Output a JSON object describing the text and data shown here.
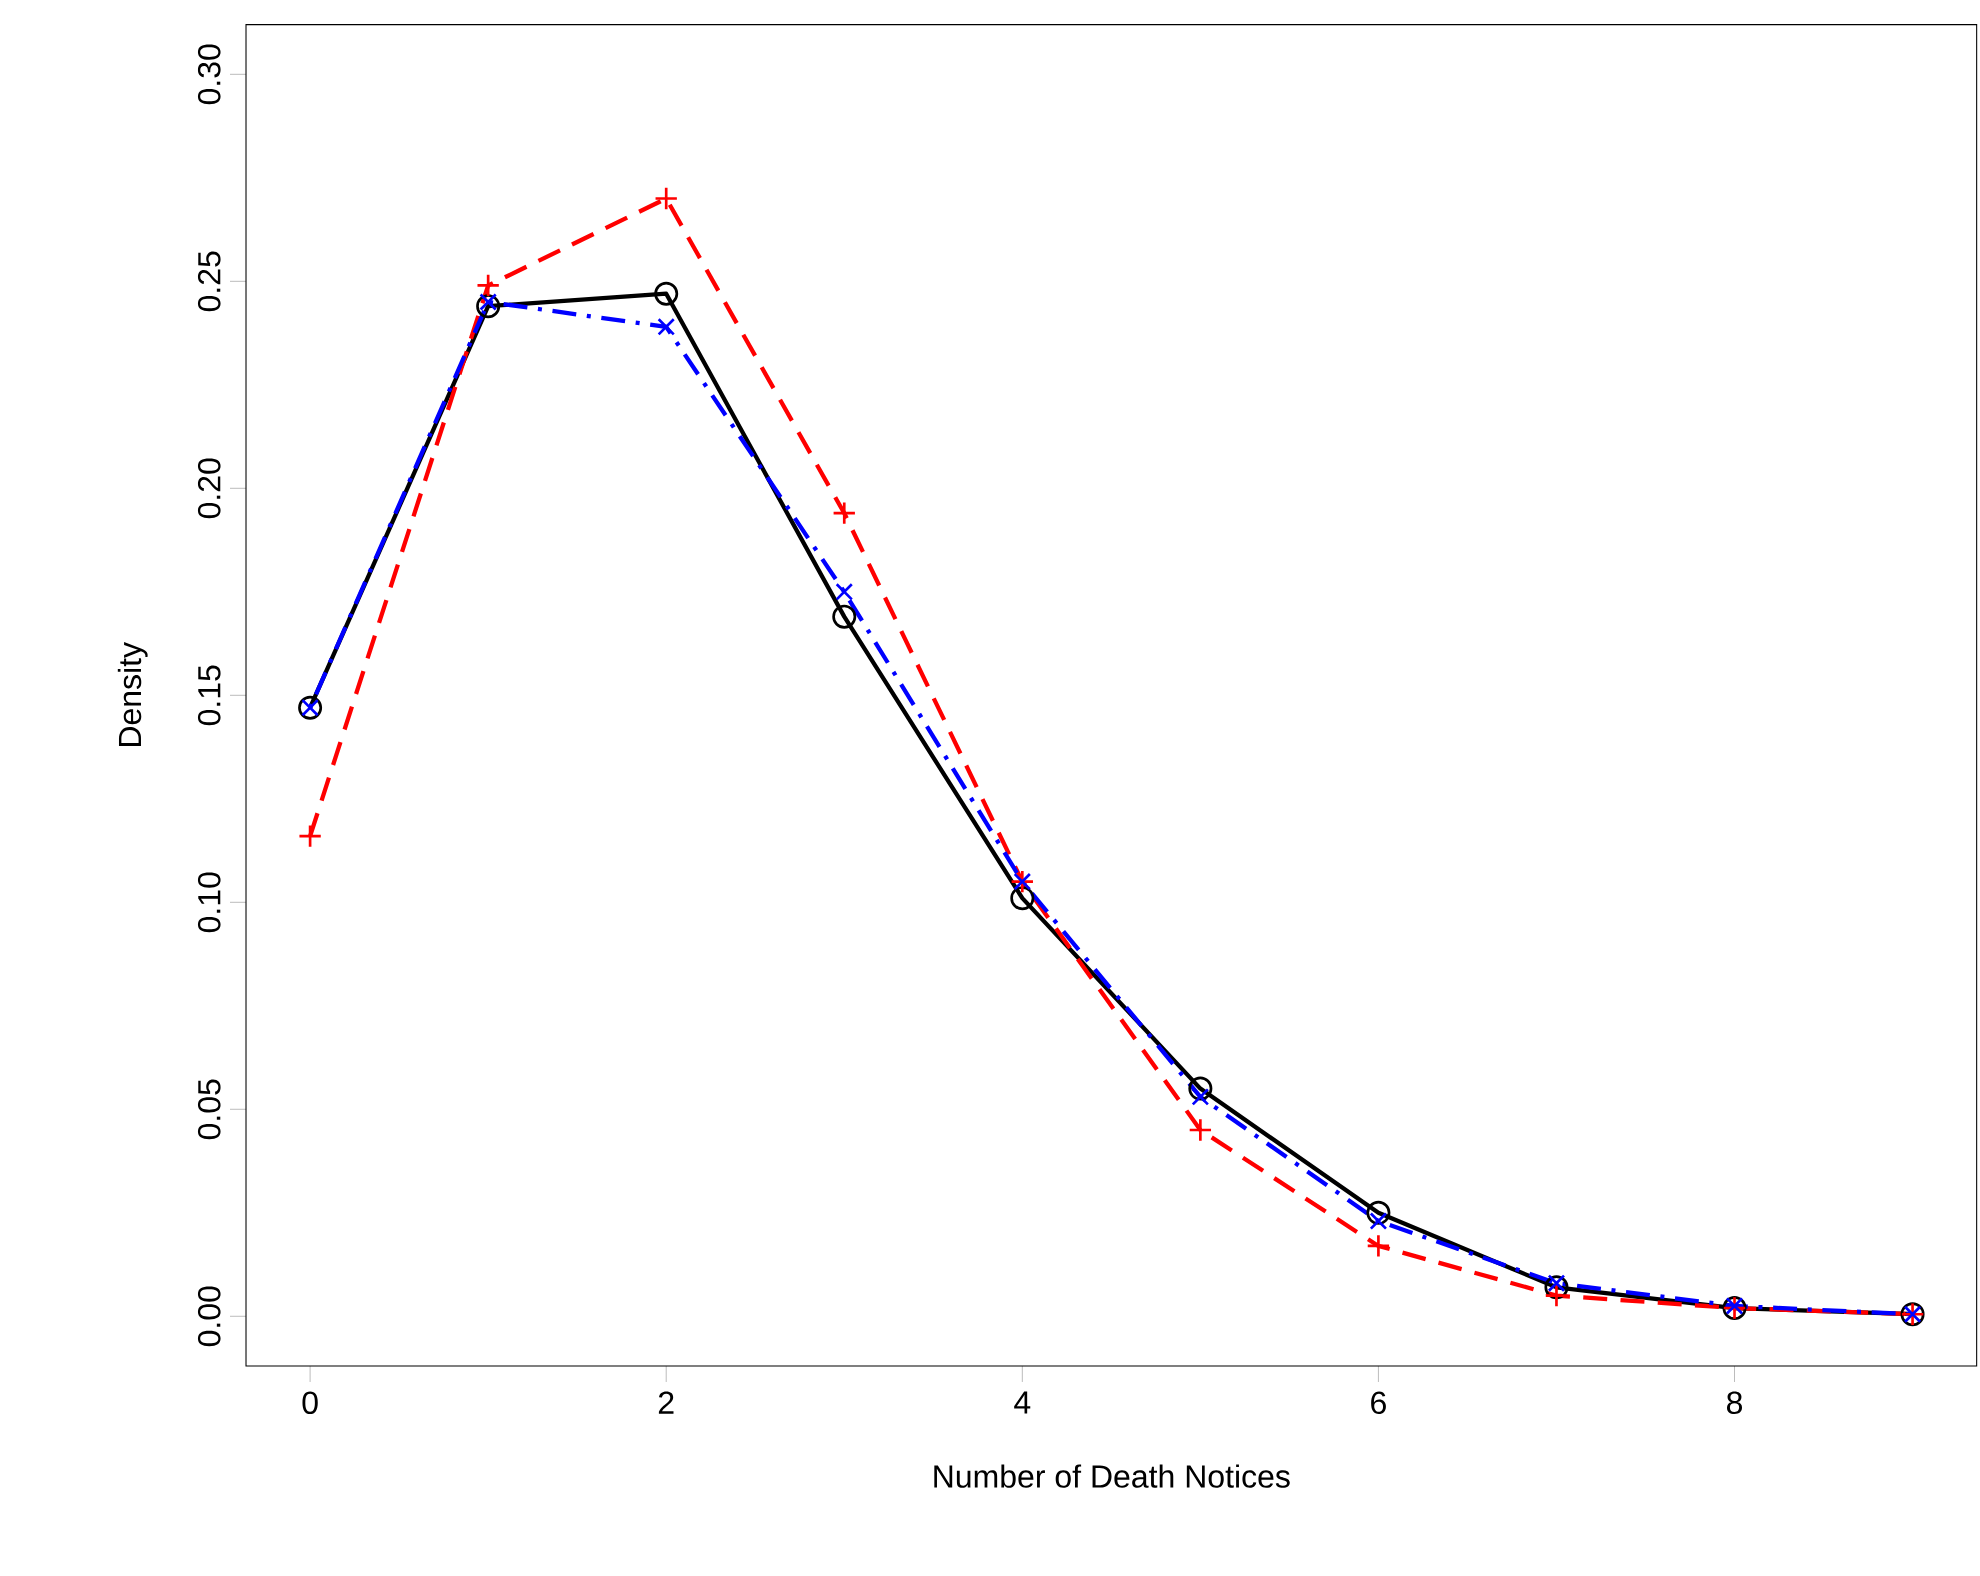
{
  "chart_data": {
    "type": "line",
    "xlabel": "Number of Death Notices",
    "ylabel": "Density",
    "x": [
      0,
      1,
      2,
      3,
      4,
      5,
      6,
      7,
      8,
      9
    ],
    "series": [
      {
        "color": "#000000",
        "marker": "circle",
        "line_style": "solid",
        "values": [
          0.147,
          0.244,
          0.247,
          0.169,
          0.101,
          0.055,
          0.025,
          0.007,
          0.002,
          0.0005
        ]
      },
      {
        "color": "#ff0000",
        "marker": "plus",
        "line_style": "dashed",
        "values": [
          0.116,
          0.249,
          0.27,
          0.194,
          0.105,
          0.045,
          0.017,
          0.005,
          0.002,
          0.0005
        ]
      },
      {
        "color": "#0000ff",
        "marker": "cross",
        "line_style": "dashdot",
        "values": [
          0.147,
          0.245,
          0.239,
          0.175,
          0.105,
          0.053,
          0.023,
          0.008,
          0.0025,
          0.0005
        ]
      }
    ],
    "xlim": [
      -0.36,
      9.36
    ],
    "ylim": [
      -0.012,
      0.312
    ],
    "xticks": [
      0,
      2,
      4,
      6,
      8
    ],
    "yticks": [
      {
        "value": 0,
        "label": "0.00"
      },
      {
        "value": 0.05,
        "label": "0.05"
      },
      {
        "value": 0.1,
        "label": "0.10"
      },
      {
        "value": 0.15,
        "label": "0.15"
      },
      {
        "value": 0.2,
        "label": "0.20"
      },
      {
        "value": 0.25,
        "label": "0.25"
      },
      {
        "value": 0.3,
        "label": "0.30"
      }
    ],
    "grid": false
  }
}
